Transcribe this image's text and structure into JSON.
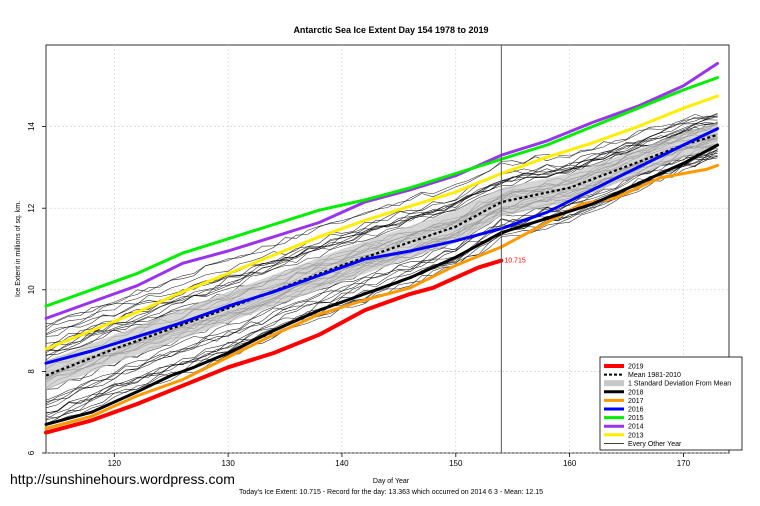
{
  "chart_data": {
    "type": "line",
    "title": "Antarctic Sea Ice Extent Day 154 1978 to 2019",
    "xlabel": "Day of Year",
    "ylabel": "Ice Extent in millions of sq. km.",
    "xlim": [
      114,
      174
    ],
    "ylim": [
      6,
      16
    ],
    "x_ticks": [
      "120",
      "130",
      "140",
      "150",
      "160",
      "170"
    ],
    "y_ticks": [
      "6",
      "8",
      "10",
      "12",
      "14"
    ],
    "grid": true,
    "current_day": 154,
    "current_value_label": "10.715",
    "legend_position": "bottom-right",
    "mean_series": {
      "name": "Mean 1981-2010",
      "color": "#000000",
      "points": [
        [
          114,
          7.9
        ],
        [
          120,
          8.55
        ],
        [
          130,
          9.55
        ],
        [
          140,
          10.6
        ],
        [
          150,
          11.55
        ],
        [
          154,
          12.15
        ],
        [
          160,
          12.5
        ],
        [
          170,
          13.55
        ],
        [
          173,
          13.8
        ]
      ]
    },
    "std_band": {
      "name": "1 Standard Deviation From Mean",
      "color": "#c8c8c8",
      "upper": [
        [
          114,
          8.25
        ],
        [
          120,
          8.9
        ],
        [
          130,
          9.95
        ],
        [
          140,
          11.0
        ],
        [
          150,
          11.95
        ],
        [
          154,
          12.5
        ],
        [
          160,
          12.85
        ],
        [
          170,
          13.85
        ],
        [
          173,
          14.1
        ]
      ],
      "lower": [
        [
          114,
          7.55
        ],
        [
          120,
          8.2
        ],
        [
          130,
          9.2
        ],
        [
          140,
          10.2
        ],
        [
          150,
          11.15
        ],
        [
          154,
          11.8
        ],
        [
          160,
          12.15
        ],
        [
          170,
          13.25
        ],
        [
          173,
          13.5
        ]
      ]
    },
    "series": [
      {
        "name": "2019",
        "color": "#ff0000",
        "width": 4,
        "points": [
          [
            114,
            6.5
          ],
          [
            118,
            6.8
          ],
          [
            122,
            7.2
          ],
          [
            126,
            7.65
          ],
          [
            130,
            8.1
          ],
          [
            134,
            8.45
          ],
          [
            138,
            8.9
          ],
          [
            142,
            9.5
          ],
          [
            146,
            9.9
          ],
          [
            148,
            10.05
          ],
          [
            150,
            10.3
          ],
          [
            152,
            10.55
          ],
          [
            154,
            10.715
          ]
        ]
      },
      {
        "name": "2018",
        "color": "#000000",
        "width": 3,
        "points": [
          [
            114,
            6.7
          ],
          [
            118,
            7.0
          ],
          [
            122,
            7.5
          ],
          [
            125,
            7.9
          ],
          [
            127,
            8.1
          ],
          [
            130,
            8.45
          ],
          [
            134,
            9.0
          ],
          [
            138,
            9.5
          ],
          [
            142,
            9.9
          ],
          [
            146,
            10.3
          ],
          [
            150,
            10.8
          ],
          [
            154,
            11.4
          ],
          [
            158,
            11.75
          ],
          [
            162,
            12.1
          ],
          [
            166,
            12.6
          ],
          [
            170,
            13.1
          ],
          [
            173,
            13.55
          ]
        ]
      },
      {
        "name": "2017",
        "color": "#ff9900",
        "width": 3,
        "points": [
          [
            114,
            6.6
          ],
          [
            118,
            6.9
          ],
          [
            122,
            7.4
          ],
          [
            126,
            7.8
          ],
          [
            130,
            8.35
          ],
          [
            134,
            8.9
          ],
          [
            138,
            9.4
          ],
          [
            142,
            9.75
          ],
          [
            146,
            10.05
          ],
          [
            150,
            10.6
          ],
          [
            154,
            11.05
          ],
          [
            158,
            11.65
          ],
          [
            161,
            12.1
          ],
          [
            164,
            12.25
          ],
          [
            168,
            12.75
          ],
          [
            172,
            12.95
          ],
          [
            173,
            13.05
          ]
        ]
      },
      {
        "name": "2016",
        "color": "#0000ff",
        "width": 3,
        "points": [
          [
            114,
            8.2
          ],
          [
            118,
            8.5
          ],
          [
            122,
            8.85
          ],
          [
            126,
            9.2
          ],
          [
            130,
            9.6
          ],
          [
            134,
            9.95
          ],
          [
            138,
            10.35
          ],
          [
            142,
            10.75
          ],
          [
            146,
            10.95
          ],
          [
            150,
            11.2
          ],
          [
            154,
            11.5
          ],
          [
            158,
            11.9
          ],
          [
            162,
            12.45
          ],
          [
            166,
            13.0
          ],
          [
            170,
            13.55
          ],
          [
            173,
            13.95
          ]
        ]
      },
      {
        "name": "2015",
        "color": "#00ee00",
        "width": 3,
        "points": [
          [
            114,
            9.6
          ],
          [
            118,
            10.0
          ],
          [
            122,
            10.4
          ],
          [
            126,
            10.9
          ],
          [
            130,
            11.25
          ],
          [
            134,
            11.6
          ],
          [
            138,
            11.95
          ],
          [
            142,
            12.2
          ],
          [
            146,
            12.5
          ],
          [
            150,
            12.85
          ],
          [
            154,
            13.2
          ],
          [
            158,
            13.55
          ],
          [
            162,
            14.0
          ],
          [
            166,
            14.45
          ],
          [
            170,
            14.9
          ],
          [
            173,
            15.2
          ]
        ]
      },
      {
        "name": "2014",
        "color": "#9933ee",
        "width": 3,
        "points": [
          [
            114,
            9.3
          ],
          [
            118,
            9.7
          ],
          [
            122,
            10.1
          ],
          [
            126,
            10.65
          ],
          [
            130,
            10.95
          ],
          [
            134,
            11.3
          ],
          [
            138,
            11.65
          ],
          [
            142,
            12.15
          ],
          [
            146,
            12.45
          ],
          [
            150,
            12.8
          ],
          [
            154,
            13.3
          ],
          [
            158,
            13.65
          ],
          [
            162,
            14.1
          ],
          [
            166,
            14.5
          ],
          [
            170,
            15.0
          ],
          [
            173,
            15.55
          ]
        ]
      },
      {
        "name": "2013",
        "color": "#ffee00",
        "width": 3,
        "points": [
          [
            114,
            8.55
          ],
          [
            118,
            9.0
          ],
          [
            122,
            9.45
          ],
          [
            126,
            9.95
          ],
          [
            130,
            10.4
          ],
          [
            134,
            10.85
          ],
          [
            138,
            11.3
          ],
          [
            142,
            11.7
          ],
          [
            146,
            12.05
          ],
          [
            150,
            12.4
          ],
          [
            154,
            12.85
          ],
          [
            158,
            13.25
          ],
          [
            162,
            13.6
          ],
          [
            166,
            14.0
          ],
          [
            170,
            14.45
          ],
          [
            173,
            14.75
          ]
        ]
      }
    ],
    "legend": [
      {
        "label": "2019",
        "kind": "line",
        "color": "#ff0000",
        "width": 4
      },
      {
        "label": "Mean 1981-2010",
        "kind": "dash",
        "color": "#000000",
        "width": 2
      },
      {
        "label": "1 Standard Deviation From Mean",
        "kind": "band",
        "color": "#c8c8c8",
        "width": 6
      },
      {
        "label": "2018",
        "kind": "line",
        "color": "#000000",
        "width": 3
      },
      {
        "label": "2017",
        "kind": "line",
        "color": "#ff9900",
        "width": 3
      },
      {
        "label": "2016",
        "kind": "line",
        "color": "#0000ff",
        "width": 3
      },
      {
        "label": "2015",
        "kind": "line",
        "color": "#00ee00",
        "width": 3
      },
      {
        "label": "2014",
        "kind": "line",
        "color": "#9933ee",
        "width": 3
      },
      {
        "label": "2013",
        "kind": "line",
        "color": "#ffee00",
        "width": 3
      },
      {
        "label": "Every Other Year",
        "kind": "line",
        "color": "#000000",
        "width": 0.7
      }
    ]
  },
  "footer": {
    "watermark": "http://sunshinehours.wordpress.com",
    "note": "Today's Ice Extent: 10.715  - Record for the day: 13.363 which occurred on 2014 6 3  - Mean: 12.15"
  }
}
